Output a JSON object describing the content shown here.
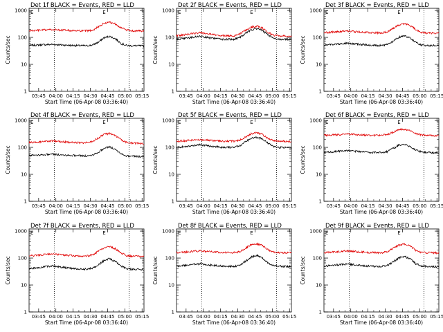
{
  "figure": {
    "ylabel": "Counts/sec",
    "xlabel": "Start Time (06-Apr-08 03:36:40)",
    "x_ticks": [
      "03:45",
      "04:00",
      "04:15",
      "04:30",
      "04:45",
      "05:00",
      "05:15"
    ],
    "y_ticks": [
      "1",
      "10",
      "100",
      "1000"
    ],
    "corner_marks": {
      "left": "E",
      "right": "E"
    }
  },
  "colors": {
    "events": "#000000",
    "lld": "#e00000",
    "axes": "#000000"
  },
  "chart_data": [
    {
      "type": "line",
      "title": "Det 1f BLACK = Events, RED = LLD",
      "x_unit": "minutes after 03:36:40",
      "xlim": [
        0,
        100
      ],
      "ylim": [
        1,
        1200
      ],
      "y_scale": "log",
      "dotted_vlines": [
        22,
        87
      ],
      "series": [
        {
          "name": "Events",
          "color": "black",
          "x": [
            0,
            10,
            20,
            30,
            40,
            50,
            55,
            60,
            65,
            70,
            75,
            80,
            85,
            90,
            95,
            100
          ],
          "y": [
            50,
            53,
            55,
            52,
            50,
            49,
            52,
            65,
            95,
            110,
            90,
            60,
            50,
            49,
            49,
            48
          ]
        },
        {
          "name": "LLD",
          "color": "red",
          "x": [
            0,
            10,
            20,
            30,
            40,
            50,
            55,
            60,
            65,
            70,
            75,
            80,
            85,
            90,
            95,
            100
          ],
          "y": [
            175,
            185,
            195,
            185,
            175,
            175,
            185,
            240,
            330,
            370,
            320,
            230,
            185,
            175,
            175,
            172
          ]
        }
      ]
    },
    {
      "type": "line",
      "title": "Det 2f BLACK = Events, RED = LLD",
      "x_unit": "minutes after 03:36:40",
      "xlim": [
        0,
        100
      ],
      "ylim": [
        1,
        1200
      ],
      "y_scale": "log",
      "dotted_vlines": [
        22,
        87
      ],
      "series": [
        {
          "name": "Events",
          "color": "black",
          "x": [
            0,
            10,
            20,
            30,
            40,
            50,
            55,
            60,
            65,
            70,
            75,
            80,
            85,
            90,
            95,
            100
          ],
          "y": [
            85,
            95,
            110,
            95,
            85,
            85,
            100,
            140,
            190,
            210,
            180,
            120,
            90,
            85,
            85,
            85
          ]
        },
        {
          "name": "LLD",
          "color": "red",
          "x": [
            0,
            10,
            20,
            30,
            40,
            50,
            55,
            60,
            65,
            70,
            75,
            80,
            85,
            90,
            95,
            100
          ],
          "y": [
            115,
            130,
            150,
            130,
            115,
            115,
            135,
            180,
            240,
            260,
            220,
            150,
            120,
            115,
            112,
            112
          ]
        }
      ]
    },
    {
      "type": "line",
      "title": "Det 3f BLACK = Events, RED = LLD",
      "x_unit": "minutes after 03:36:40",
      "xlim": [
        0,
        100
      ],
      "ylim": [
        1,
        1200
      ],
      "y_scale": "log",
      "dotted_vlines": [
        22,
        87
      ],
      "series": [
        {
          "name": "Events",
          "color": "black",
          "x": [
            0,
            10,
            20,
            30,
            40,
            50,
            55,
            60,
            65,
            70,
            75,
            80,
            85,
            90,
            95,
            100
          ],
          "y": [
            52,
            56,
            60,
            56,
            52,
            50,
            55,
            70,
            100,
            115,
            95,
            65,
            52,
            50,
            50,
            50
          ]
        },
        {
          "name": "LLD",
          "color": "red",
          "x": [
            0,
            10,
            20,
            30,
            40,
            50,
            55,
            60,
            65,
            70,
            75,
            80,
            85,
            90,
            95,
            100
          ],
          "y": [
            150,
            160,
            175,
            160,
            150,
            148,
            160,
            210,
            290,
            320,
            280,
            195,
            150,
            145,
            145,
            142
          ]
        }
      ]
    },
    {
      "type": "line",
      "title": "Det 4f BLACK = Events, RED = LLD",
      "x_unit": "minutes after 03:36:40",
      "xlim": [
        0,
        100
      ],
      "ylim": [
        1,
        1200
      ],
      "y_scale": "log",
      "dotted_vlines": [
        22,
        87
      ],
      "series": [
        {
          "name": "Events",
          "color": "black",
          "x": [
            0,
            10,
            20,
            30,
            40,
            50,
            55,
            60,
            65,
            70,
            75,
            80,
            85,
            90,
            95,
            100
          ],
          "y": [
            50,
            53,
            56,
            52,
            50,
            48,
            52,
            65,
            90,
            105,
            85,
            58,
            48,
            47,
            46,
            45
          ]
        },
        {
          "name": "LLD",
          "color": "red",
          "x": [
            0,
            10,
            20,
            30,
            40,
            50,
            55,
            60,
            65,
            70,
            75,
            80,
            85,
            90,
            95,
            100
          ],
          "y": [
            150,
            160,
            175,
            160,
            150,
            148,
            165,
            220,
            300,
            330,
            280,
            190,
            150,
            145,
            140,
            138
          ]
        }
      ]
    },
    {
      "type": "line",
      "title": "Det 5f BLACK = Events, RED = LLD",
      "x_unit": "minutes after 03:36:40",
      "xlim": [
        0,
        100
      ],
      "ylim": [
        1,
        1200
      ],
      "y_scale": "log",
      "dotted_vlines": [
        22,
        87
      ],
      "series": [
        {
          "name": "Events",
          "color": "black",
          "x": [
            0,
            10,
            20,
            30,
            40,
            50,
            55,
            60,
            65,
            70,
            75,
            80,
            85,
            90,
            95,
            100
          ],
          "y": [
            100,
            110,
            125,
            110,
            100,
            100,
            115,
            160,
            220,
            240,
            200,
            140,
            105,
            100,
            98,
            97
          ]
        },
        {
          "name": "LLD",
          "color": "red",
          "x": [
            0,
            10,
            20,
            30,
            40,
            50,
            55,
            60,
            65,
            70,
            75,
            80,
            85,
            90,
            95,
            100
          ],
          "y": [
            170,
            180,
            195,
            180,
            170,
            170,
            185,
            240,
            320,
            350,
            300,
            210,
            175,
            170,
            168,
            165
          ]
        }
      ]
    },
    {
      "type": "line",
      "title": "Det 6f BLACK = Events, RED = LLD",
      "x_unit": "minutes after 03:36:40",
      "xlim": [
        0,
        100
      ],
      "ylim": [
        1,
        1200
      ],
      "y_scale": "log",
      "dotted_vlines": [
        22,
        87
      ],
      "series": [
        {
          "name": "Events",
          "color": "black",
          "x": [
            0,
            10,
            20,
            30,
            40,
            50,
            55,
            60,
            65,
            70,
            75,
            80,
            85,
            90,
            95,
            100
          ],
          "y": [
            65,
            70,
            75,
            70,
            65,
            64,
            70,
            90,
            120,
            130,
            110,
            80,
            66,
            64,
            64,
            63
          ]
        },
        {
          "name": "LLD",
          "color": "red",
          "x": [
            0,
            10,
            20,
            30,
            40,
            50,
            55,
            60,
            65,
            70,
            75,
            80,
            85,
            90,
            95,
            100
          ],
          "y": [
            280,
            290,
            310,
            295,
            280,
            278,
            300,
            360,
            450,
            480,
            420,
            320,
            285,
            280,
            275,
            272
          ]
        }
      ]
    },
    {
      "type": "line",
      "title": "Det 7f BLACK = Events, RED = LLD",
      "x_unit": "minutes after 03:36:40",
      "xlim": [
        0,
        100
      ],
      "ylim": [
        1,
        1200
      ],
      "y_scale": "log",
      "dotted_vlines": [
        22,
        87
      ],
      "series": [
        {
          "name": "Events",
          "color": "black",
          "x": [
            0,
            10,
            20,
            30,
            40,
            50,
            55,
            60,
            65,
            70,
            75,
            80,
            85,
            90,
            95,
            100
          ],
          "y": [
            40,
            45,
            52,
            45,
            40,
            39,
            42,
            55,
            80,
            95,
            75,
            50,
            40,
            38,
            38,
            37
          ]
        },
        {
          "name": "LLD",
          "color": "red",
          "x": [
            0,
            10,
            20,
            30,
            40,
            50,
            55,
            60,
            65,
            70,
            75,
            80,
            85,
            90,
            95,
            100
          ],
          "y": [
            120,
            130,
            145,
            130,
            120,
            118,
            130,
            175,
            240,
            265,
            225,
            155,
            122,
            118,
            116,
            115
          ]
        }
      ]
    },
    {
      "type": "line",
      "title": "Det 8f BLACK = Events, RED = LLD",
      "x_unit": "minutes after 03:36:40",
      "xlim": [
        0,
        100
      ],
      "ylim": [
        1,
        1200
      ],
      "y_scale": "log",
      "dotted_vlines": [
        22,
        87
      ],
      "series": [
        {
          "name": "Events",
          "color": "black",
          "x": [
            0,
            10,
            20,
            30,
            40,
            50,
            55,
            60,
            65,
            70,
            75,
            80,
            85,
            90,
            95,
            100
          ],
          "y": [
            50,
            55,
            62,
            55,
            50,
            49,
            54,
            75,
            110,
            125,
            100,
            65,
            52,
            50,
            49,
            48
          ]
        },
        {
          "name": "LLD",
          "color": "red",
          "x": [
            0,
            10,
            20,
            30,
            40,
            50,
            55,
            60,
            65,
            70,
            75,
            80,
            85,
            90,
            95,
            100
          ],
          "y": [
            160,
            170,
            185,
            170,
            160,
            158,
            172,
            230,
            310,
            340,
            290,
            200,
            162,
            158,
            156,
            155
          ]
        }
      ]
    },
    {
      "type": "line",
      "title": "Det 9f BLACK = Events, RED = LLD",
      "x_unit": "minutes after 03:36:40",
      "xlim": [
        0,
        100
      ],
      "ylim": [
        1,
        1200
      ],
      "y_scale": "log",
      "dotted_vlines": [
        22,
        87
      ],
      "series": [
        {
          "name": "Events",
          "color": "black",
          "x": [
            0,
            10,
            20,
            30,
            40,
            50,
            55,
            60,
            65,
            70,
            75,
            80,
            85,
            90,
            95,
            100
          ],
          "y": [
            50,
            55,
            60,
            55,
            50,
            49,
            53,
            70,
            100,
            115,
            95,
            62,
            50,
            49,
            48,
            48
          ]
        },
        {
          "name": "LLD",
          "color": "red",
          "x": [
            0,
            10,
            20,
            30,
            40,
            50,
            55,
            60,
            65,
            70,
            75,
            80,
            85,
            90,
            95,
            100
          ],
          "y": [
            160,
            170,
            185,
            170,
            160,
            158,
            172,
            225,
            300,
            330,
            280,
            195,
            162,
            158,
            156,
            155
          ]
        }
      ]
    }
  ]
}
